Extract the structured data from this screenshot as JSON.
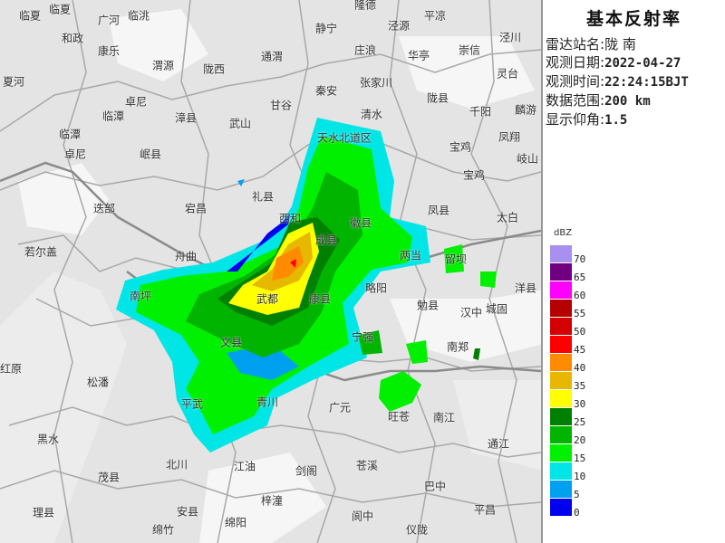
{
  "panel": {
    "title": "基本反射率",
    "rows": [
      {
        "label": "雷达站名:",
        "value": "陇 南"
      },
      {
        "label": "观测日期:",
        "value": "2022-04-27"
      },
      {
        "label": "观测时间:",
        "value": "22:24:15BJT"
      },
      {
        "label": "数据范围:",
        "value": "200 km"
      },
      {
        "label": "显示仰角:",
        "value": "1.5"
      }
    ]
  },
  "legend": {
    "unit": "dBZ",
    "items": [
      {
        "value": "70",
        "color": "#a890f0"
      },
      {
        "value": "65",
        "color": "#700080"
      },
      {
        "value": "60",
        "color": "#ff00ff"
      },
      {
        "value": "55",
        "color": "#b40000"
      },
      {
        "value": "50",
        "color": "#d40000"
      },
      {
        "value": "45",
        "color": "#ff0000"
      },
      {
        "value": "40",
        "color": "#ff8c00"
      },
      {
        "value": "35",
        "color": "#e6b800"
      },
      {
        "value": "30",
        "color": "#ffff00"
      },
      {
        "value": "25",
        "color": "#008000"
      },
      {
        "value": "20",
        "color": "#00b400"
      },
      {
        "value": "15",
        "color": "#00f000"
      },
      {
        "value": "10",
        "color": "#00e6e6"
      },
      {
        "value": "5",
        "color": "#00a0f0"
      },
      {
        "value": "0",
        "color": "#0000f0"
      }
    ]
  },
  "map": {
    "places": [
      "临夏",
      "临夏",
      "广河",
      "临洮",
      "和政",
      "康乐",
      "渭源",
      "陇西",
      "通渭",
      "静宁",
      "隆德",
      "泾源",
      "平凉",
      "泾川",
      "崇信",
      "华亭",
      "庄浪",
      "灵台",
      "张家川",
      "秦安",
      "甘谷",
      "清水",
      "陇县",
      "千阳",
      "麟游",
      "凤翔",
      "宝鸡",
      "宝鸡",
      "岐山",
      "天水北道区",
      "夏河",
      "卓尼",
      "临潭",
      "漳县",
      "武山",
      "临潭",
      "卓尼",
      "岷县",
      "礼县",
      "宕昌",
      "迭部",
      "凤县",
      "太白",
      "若尔盖",
      "舟曲",
      "西和",
      "徽县",
      "成县",
      "两当",
      "留坝",
      "武都",
      "康县",
      "略阳",
      "勉县",
      "汉中",
      "城固",
      "洋县",
      "宁强",
      "南郑",
      "南坪",
      "文县",
      "红原",
      "松潘",
      "平武",
      "青川",
      "广元",
      "旺苍",
      "南江",
      "通江",
      "黑水",
      "北川",
      "江油",
      "茂县",
      "剑阁",
      "苍溪",
      "巴中",
      "梓潼",
      "安县",
      "理县",
      "绵阳",
      "阆中",
      "平昌",
      "绵竹",
      "仪陇"
    ]
  }
}
